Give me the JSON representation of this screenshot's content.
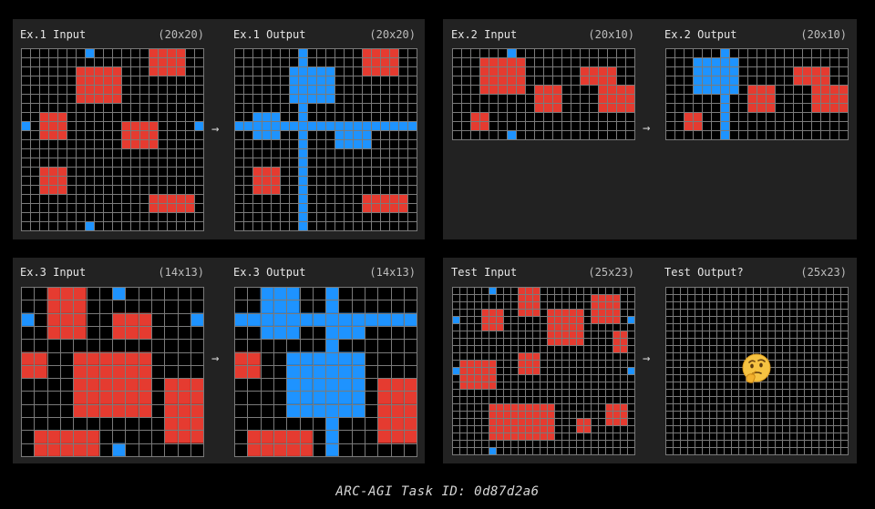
{
  "palette": {
    "0": "#000000",
    "2": "#e53b30",
    "1": "#1e93ff"
  },
  "examples": [
    {
      "input_label": "Ex.1 Input",
      "input_size": "(20x20)",
      "output_label": "Ex.1 Output",
      "output_size": "(20x20)"
    },
    {
      "input_label": "Ex.2 Input",
      "input_size": "(20x10)",
      "output_label": "Ex.2 Output",
      "output_size": "(20x10)"
    },
    {
      "input_label": "Ex.3 Input",
      "input_size": "(14x13)",
      "output_label": "Ex.3 Output",
      "output_size": "(14x13)"
    },
    {
      "input_label": "Test Input",
      "input_size": "(25x23)",
      "output_label": "Test Output?",
      "output_size": "(25x23)"
    }
  ],
  "arrow": "→",
  "test_output_marker": "thinking-face",
  "caption": "ARC-AGI Task ID: 0d87d2a6",
  "grids": {
    "ex1_in": {
      "w": 20,
      "h": 20,
      "r": [
        [
          14,
          0,
          4,
          3
        ],
        [
          6,
          2,
          5,
          4
        ],
        [
          2,
          7,
          3,
          3
        ],
        [
          11,
          8,
          4,
          3
        ],
        [
          2,
          13,
          3,
          3
        ],
        [
          14,
          16,
          5,
          2
        ]
      ],
      "b": [
        [
          7,
          0,
          1,
          1
        ],
        [
          0,
          8,
          1,
          1
        ],
        [
          19,
          8,
          1,
          1
        ],
        [
          7,
          19,
          1,
          1
        ]
      ]
    },
    "ex1_out": {
      "w": 20,
      "h": 20,
      "r": [
        [
          14,
          0,
          4,
          3
        ],
        [
          2,
          13,
          3,
          3
        ],
        [
          14,
          16,
          5,
          2
        ]
      ],
      "b": [
        [
          7,
          0,
          1,
          20
        ],
        [
          0,
          8,
          20,
          1
        ],
        [
          6,
          2,
          5,
          4
        ],
        [
          2,
          7,
          3,
          3
        ],
        [
          11,
          8,
          4,
          3
        ]
      ]
    },
    "ex2_in": {
      "w": 20,
      "h": 10,
      "r": [
        [
          3,
          1,
          5,
          4
        ],
        [
          14,
          2,
          4,
          2
        ],
        [
          9,
          4,
          3,
          3
        ],
        [
          16,
          4,
          4,
          3
        ],
        [
          2,
          7,
          2,
          2
        ]
      ],
      "b": [
        [
          6,
          0,
          1,
          1
        ],
        [
          6,
          9,
          1,
          1
        ]
      ]
    },
    "ex2_out": {
      "w": 20,
      "h": 10,
      "r": [
        [
          14,
          2,
          4,
          2
        ],
        [
          9,
          4,
          3,
          3
        ],
        [
          16,
          4,
          4,
          3
        ],
        [
          2,
          7,
          2,
          2
        ]
      ],
      "b": [
        [
          6,
          0,
          1,
          10
        ],
        [
          3,
          1,
          5,
          4
        ]
      ]
    },
    "ex3_in": {
      "w": 14,
      "h": 13,
      "r": [
        [
          2,
          0,
          3,
          4
        ],
        [
          7,
          2,
          3,
          2
        ],
        [
          0,
          5,
          2,
          2
        ],
        [
          4,
          5,
          6,
          5
        ],
        [
          11,
          7,
          3,
          5
        ],
        [
          1,
          11,
          5,
          2
        ]
      ],
      "b": [
        [
          7,
          0,
          1,
          1
        ],
        [
          0,
          2,
          1,
          1
        ],
        [
          13,
          2,
          1,
          1
        ],
        [
          7,
          12,
          1,
          1
        ]
      ]
    },
    "ex3_out": {
      "w": 14,
      "h": 13,
      "r": [
        [
          0,
          5,
          2,
          2
        ],
        [
          11,
          7,
          3,
          5
        ],
        [
          1,
          11,
          5,
          2
        ]
      ],
      "b": [
        [
          7,
          0,
          1,
          13
        ],
        [
          0,
          2,
          14,
          1
        ],
        [
          2,
          0,
          3,
          4
        ],
        [
          7,
          2,
          3,
          2
        ],
        [
          4,
          5,
          6,
          5
        ]
      ]
    },
    "test_in": {
      "w": 25,
      "h": 23,
      "r": [
        [
          9,
          0,
          3,
          4
        ],
        [
          19,
          1,
          4,
          4
        ],
        [
          4,
          3,
          3,
          3
        ],
        [
          13,
          3,
          5,
          5
        ],
        [
          22,
          6,
          2,
          3
        ],
        [
          9,
          9,
          3,
          3
        ],
        [
          1,
          10,
          5,
          4
        ],
        [
          5,
          16,
          9,
          5
        ],
        [
          21,
          16,
          3,
          3
        ],
        [
          17,
          18,
          2,
          2
        ]
      ],
      "b": [
        [
          5,
          0,
          1,
          1
        ],
        [
          0,
          4,
          1,
          1
        ],
        [
          24,
          4,
          1,
          1
        ],
        [
          0,
          11,
          1,
          1
        ],
        [
          24,
          11,
          1,
          1
        ],
        [
          5,
          22,
          1,
          1
        ]
      ]
    },
    "test_out": {
      "w": 25,
      "h": 23,
      "r": [],
      "b": []
    }
  }
}
